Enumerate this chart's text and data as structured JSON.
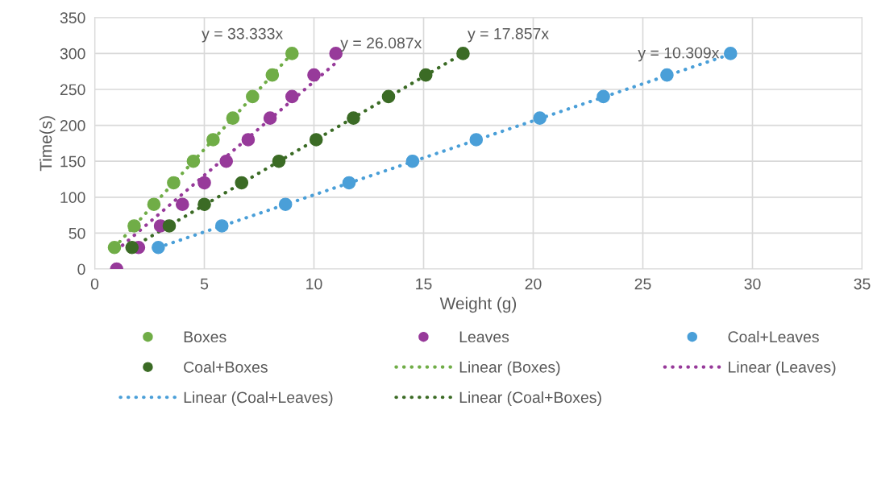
{
  "chart_data": {
    "type": "scatter",
    "xlabel": "Weight (g)",
    "ylabel": "Time(s)",
    "xlim": [
      0,
      35
    ],
    "xticks": [
      0,
      5,
      10,
      15,
      20,
      25,
      30,
      35
    ],
    "ylim": [
      0,
      350
    ],
    "yticks": [
      0,
      50,
      100,
      150,
      200,
      250,
      300,
      350
    ],
    "grid": true,
    "legend": "bottom",
    "marker": "circle",
    "series": [
      {
        "name": "Boxes",
        "color": "#70ad47",
        "x": [
          0.9,
          1.8,
          2.7,
          3.6,
          4.5,
          5.4,
          6.3,
          7.2,
          8.1,
          9.0
        ],
        "values": [
          30,
          60,
          90,
          120,
          150,
          180,
          210,
          240,
          270,
          300
        ]
      },
      {
        "name": "Leaves",
        "color": "#973a9a",
        "x": [
          1,
          2,
          3,
          4,
          5,
          6,
          7,
          8,
          9,
          10,
          11
        ],
        "values": [
          0,
          30,
          60,
          90,
          120,
          150,
          180,
          210,
          240,
          270,
          300
        ]
      },
      {
        "name": "Coal+Leaves",
        "color": "#4a9fd8",
        "x": [
          2.9,
          5.8,
          8.7,
          11.6,
          14.5,
          17.4,
          20.3,
          23.2,
          26.1,
          29.0
        ],
        "values": [
          30,
          60,
          90,
          120,
          150,
          180,
          210,
          240,
          270,
          300
        ]
      },
      {
        "name": "Coal+Boxes",
        "color": "#3b6b25",
        "x": [
          1.7,
          3.4,
          5.0,
          6.7,
          8.4,
          10.1,
          11.8,
          13.4,
          15.1,
          16.8
        ],
        "values": [
          30,
          60,
          90,
          120,
          150,
          180,
          210,
          240,
          270,
          300
        ]
      },
      {
        "name": "Linear (Boxes)",
        "type": "line",
        "marker": "none",
        "line_style": "dotted",
        "color": "#70ad47",
        "x": [
          0.9,
          9.0
        ],
        "values": [
          30,
          300
        ]
      },
      {
        "name": "Linear (Leaves)",
        "type": "line",
        "marker": "none",
        "line_style": "dotted",
        "color": "#973a9a",
        "x": [
          1,
          11
        ],
        "values": [
          26,
          287
        ]
      },
      {
        "name": "Linear (Coal+Leaves)",
        "type": "line",
        "marker": "none",
        "line_style": "dotted",
        "color": "#4a9fd8",
        "x": [
          2.9,
          29.0
        ],
        "values": [
          30,
          299
        ]
      },
      {
        "name": "Linear (Coal+Boxes)",
        "type": "line",
        "marker": "none",
        "line_style": "dotted",
        "color": "#3b6b25",
        "x": [
          1.7,
          16.8
        ],
        "values": [
          30,
          300
        ]
      }
    ],
    "annotations": [
      "y = 33.333x",
      "y = 26.087x",
      "y = 10.309x",
      "y = 17.857x"
    ]
  }
}
